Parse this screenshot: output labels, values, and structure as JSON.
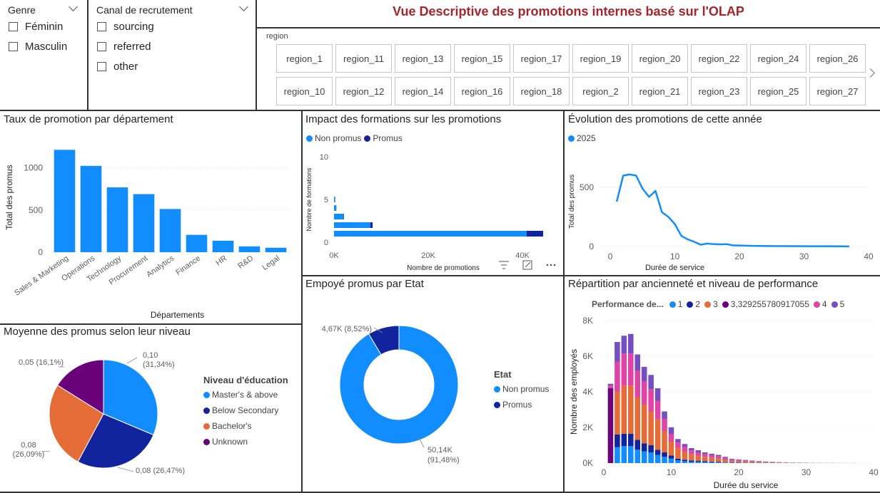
{
  "report_title": "Vue Descriptive des promotions internes basé sur l'OLAP",
  "colors": {
    "blue": "#118DFF",
    "navy": "#12239E",
    "orange": "#E66C37",
    "purple": "#6B007B",
    "pink": "#E044A7",
    "dark_purple": "#744EC2",
    "title_red": "#A4262C"
  },
  "genre_slicer": {
    "title": "Genre",
    "options": [
      "Féminin",
      "Masculin"
    ]
  },
  "canal_slicer": {
    "title": "Canal de recrutement",
    "options": [
      "sourcing",
      "referred",
      "other"
    ]
  },
  "region_slicer": {
    "title": "region",
    "row1": [
      "region_1",
      "region_11",
      "region_13",
      "region_15",
      "region_17",
      "region_19",
      "region_20",
      "region_22",
      "region_24",
      "region_26"
    ],
    "row2": [
      "region_10",
      "region_12",
      "region_14",
      "region_16",
      "region_18",
      "region_2",
      "region_21",
      "region_23",
      "region_25",
      "region_27"
    ],
    "next_icon": "chevron-right-icon"
  },
  "visual_header_icons": [
    "filter-icon",
    "focus-mode-icon",
    "more-options-icon"
  ],
  "chart_data": [
    {
      "id": "dept",
      "type": "bar",
      "title": "Taux de promotion par département",
      "xlabel": "Départements",
      "ylabel": "Total des promus",
      "categories": [
        "Sales & Marketing",
        "Operations",
        "Technology",
        "Procurement",
        "Analytics",
        "Finance",
        "HR",
        "R&D",
        "Legal"
      ],
      "values": [
        1213,
        1023,
        768,
        688,
        512,
        206,
        136,
        69,
        53
      ],
      "yticks": [
        "0",
        "500",
        "1000"
      ],
      "ylim": [
        0,
        1300
      ],
      "grid": true
    },
    {
      "id": "training",
      "type": "bar",
      "orientation": "horizontal",
      "stacked": true,
      "title": "Impact des formations sur les promotions",
      "xlabel": "Nombre de promotions",
      "ylabel": "Nombre de formations",
      "legend": [
        "Non promus",
        "Promus"
      ],
      "y": [
        1,
        2,
        3,
        4,
        5
      ],
      "series": [
        {
          "name": "Non promus",
          "values": [
            40900,
            7700,
            2000,
            420,
            150
          ]
        },
        {
          "name": "Promus",
          "values": [
            3500,
            500,
            100,
            20,
            5
          ]
        }
      ],
      "xticks": [
        "0K",
        "20K",
        "40K"
      ],
      "yticks": [
        "0",
        "5",
        "10"
      ],
      "xlim": [
        0,
        45000
      ],
      "ylim": [
        0,
        10
      ]
    },
    {
      "id": "evolution",
      "type": "line",
      "title": "Évolution des promotions de cette année",
      "xlabel": "Durée de service",
      "ylabel": "Total des promus",
      "legend": [
        "2025"
      ],
      "x": [
        1,
        2,
        3,
        4,
        5,
        6,
        7,
        8,
        9,
        10,
        11,
        12,
        13,
        14,
        15,
        16,
        17,
        18,
        19,
        20,
        22,
        25,
        28,
        31,
        34,
        37
      ],
      "y": [
        380,
        600,
        610,
        600,
        490,
        420,
        470,
        290,
        250,
        190,
        90,
        60,
        40,
        15,
        25,
        20,
        18,
        20,
        10,
        8,
        5,
        4,
        3,
        2,
        2,
        1
      ],
      "xticks": [
        "0",
        "10",
        "20",
        "30",
        "40"
      ],
      "yticks": [
        "0",
        "500"
      ],
      "xlim": [
        -2,
        40
      ],
      "ylim": [
        0,
        760
      ]
    },
    {
      "id": "niveau",
      "type": "pie",
      "title": "Moyenne des promus selon leur niveau",
      "legend_title": "Niveau d'éducation",
      "slices": [
        {
          "label": "Master's & above",
          "value": 0.1,
          "percent": 31.34,
          "data_label": "0,10 (31,34%)"
        },
        {
          "label": "Below Secondary",
          "value": 0.08,
          "percent": 26.47,
          "data_label": "0,08 (26,47%)"
        },
        {
          "label": "Bachelor's",
          "value": 0.08,
          "percent": 26.09,
          "data_label": "0,08 (26,09%)"
        },
        {
          "label": "Unknown",
          "value": 0.05,
          "percent": 16.1,
          "data_label": "0,05 (16,1%)"
        }
      ]
    },
    {
      "id": "etat",
      "type": "pie",
      "donut": true,
      "title": "Empoyé promus par Etat",
      "legend_title": "Etat",
      "slices": [
        {
          "label": "Non promus",
          "value": 50140,
          "percent": 91.48,
          "data_label": "50,14K (91,48%)"
        },
        {
          "label": "Promus",
          "value": 4670,
          "percent": 8.52,
          "data_label": "4,67K (8,52%)"
        }
      ]
    },
    {
      "id": "perf",
      "type": "bar",
      "stacked": true,
      "title": "Répartition par ancienneté et niveau de performance",
      "xlabel": "Durée du service",
      "ylabel": "Nombre des employés",
      "legend_title": "Performance de...",
      "legend": [
        "1",
        "2",
        "3",
        "3,329255780917055",
        "4",
        "5"
      ],
      "x": [
        1,
        2,
        3,
        4,
        5,
        6,
        7,
        8,
        9,
        10,
        11,
        12,
        13,
        14,
        15,
        16,
        17,
        18,
        19,
        20,
        21,
        22,
        23,
        24,
        25,
        26,
        27,
        28,
        29,
        30,
        31,
        32,
        33,
        34,
        35,
        36,
        37
      ],
      "series": [
        {
          "name": "1",
          "values": [
            0,
            900,
            950,
            950,
            750,
            650,
            600,
            450,
            350,
            250,
            150,
            110,
            80,
            70,
            60,
            50,
            40,
            30,
            20,
            20,
            15,
            15,
            10,
            10,
            8,
            6,
            5,
            4,
            3,
            3,
            2,
            2,
            2,
            2,
            1,
            1,
            1
          ]
        },
        {
          "name": "2",
          "values": [
            0,
            700,
            700,
            700,
            550,
            450,
            400,
            300,
            250,
            170,
            100,
            80,
            60,
            50,
            40,
            35,
            30,
            20,
            15,
            15,
            10,
            10,
            8,
            6,
            5,
            4,
            3,
            3,
            2,
            2,
            2,
            1,
            1,
            1,
            1,
            1,
            1
          ]
        },
        {
          "name": "3",
          "values": [
            0,
            2400,
            2700,
            2700,
            2400,
            2200,
            1900,
            1700,
            1200,
            800,
            600,
            450,
            350,
            300,
            250,
            220,
            200,
            150,
            100,
            90,
            80,
            60,
            50,
            40,
            30,
            25,
            20,
            15,
            12,
            10,
            8,
            6,
            5,
            4,
            3,
            2,
            2
          ]
        },
        {
          "name": "3,329255780917055",
          "values": [
            4200,
            0,
            0,
            0,
            0,
            0,
            0,
            0,
            0,
            0,
            0,
            0,
            0,
            0,
            0,
            0,
            0,
            0,
            0,
            0,
            0,
            0,
            0,
            0,
            0,
            0,
            0,
            0,
            0,
            0,
            0,
            0,
            0,
            0,
            0,
            0,
            0
          ]
        },
        {
          "name": "4",
          "values": [
            150,
            1700,
            1800,
            1800,
            1500,
            1300,
            1250,
            1050,
            700,
            420,
            300,
            280,
            220,
            180,
            160,
            140,
            120,
            90,
            60,
            50,
            40,
            30,
            25,
            20,
            15,
            12,
            10,
            8,
            6,
            5,
            4,
            3,
            2,
            2,
            1,
            1,
            1
          ]
        },
        {
          "name": "5",
          "values": [
            100,
            1100,
            1000,
            1100,
            900,
            800,
            800,
            700,
            400,
            370,
            200,
            150,
            130,
            120,
            90,
            80,
            70,
            60,
            40,
            30,
            30,
            25,
            20,
            15,
            12,
            10,
            8,
            6,
            5,
            4,
            3,
            3,
            2,
            2,
            1,
            1,
            1
          ]
        }
      ],
      "xticks": [
        "0",
        "10",
        "20",
        "30",
        "40"
      ],
      "yticks": [
        "0K",
        "2K",
        "4K",
        "6K",
        "8K"
      ],
      "xlim": [
        0,
        40
      ],
      "ylim": [
        0,
        8000
      ]
    }
  ]
}
